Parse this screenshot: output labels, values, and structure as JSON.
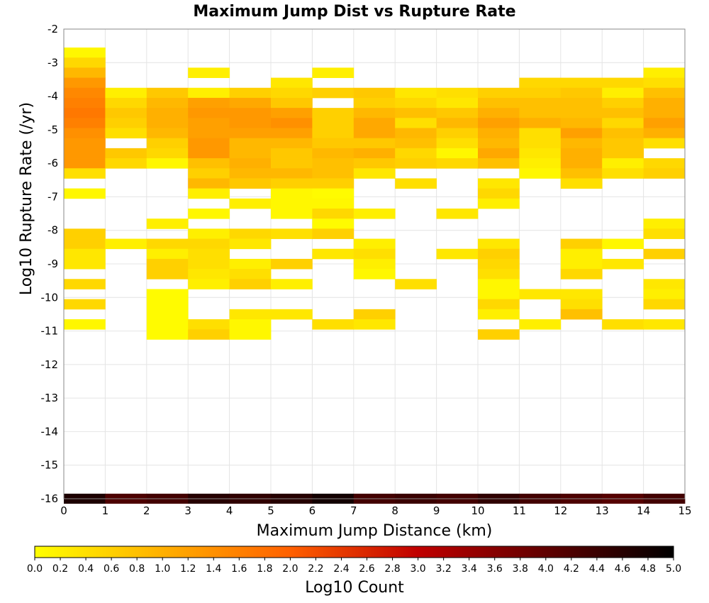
{
  "chart_data": {
    "type": "heatmap",
    "title": "Maximum Jump Dist vs Rupture Rate",
    "xlabel": "Maximum Jump Distance (km)",
    "ylabel": "Log10 Rupture Rate (/yr)",
    "xlim": [
      0,
      15
    ],
    "ylim": [
      -16,
      -2
    ],
    "x_ticks": [
      0,
      1,
      2,
      3,
      4,
      5,
      6,
      7,
      8,
      9,
      10,
      11,
      12,
      13,
      14,
      15
    ],
    "y_ticks": [
      -2,
      -3,
      -4,
      -5,
      -6,
      -7,
      -8,
      -9,
      -10,
      -11,
      -12,
      -13,
      -14,
      -15,
      -16
    ],
    "colorbar": {
      "label": "Log10 Count",
      "range": [
        0.0,
        5.0
      ],
      "ticks": [
        "0.0",
        "0.2",
        "0.4",
        "0.6",
        "0.8",
        "1.0",
        "1.2",
        "1.4",
        "1.6",
        "1.8",
        "2.0",
        "2.2",
        "2.4",
        "2.6",
        "2.8",
        "3.0",
        "3.2",
        "3.4",
        "3.6",
        "3.8",
        "4.0",
        "4.2",
        "4.4",
        "4.6",
        "4.8",
        "5.0"
      ],
      "colors": [
        "#ffff00",
        "#ffb000",
        "#ff6000",
        "#c00000",
        "#600000",
        "#000000"
      ]
    },
    "cell_height": 0.3,
    "cells": [
      [
        0,
        -2.7,
        0.1
      ],
      [
        0,
        -3.0,
        0.5
      ],
      [
        0,
        -3.3,
        0.9
      ],
      [
        0,
        -3.6,
        1.3
      ],
      [
        0,
        -3.9,
        1.5
      ],
      [
        0,
        -4.2,
        1.6
      ],
      [
        0,
        -4.5,
        1.7
      ],
      [
        0,
        -4.8,
        1.6
      ],
      [
        0,
        -5.1,
        1.4
      ],
      [
        0,
        -5.4,
        1.3
      ],
      [
        0,
        -5.7,
        1.3
      ],
      [
        0,
        -6.0,
        1.3
      ],
      [
        0,
        -6.3,
        0.4
      ],
      [
        0,
        -6.9,
        0.1
      ],
      [
        0,
        -8.1,
        0.6
      ],
      [
        0,
        -8.4,
        0.6
      ],
      [
        0,
        -8.7,
        0.3
      ],
      [
        0,
        -9.0,
        0.3
      ],
      [
        0,
        -9.6,
        0.5
      ],
      [
        0,
        -10.2,
        0.5
      ],
      [
        0,
        -10.8,
        0.1
      ],
      [
        1,
        -3.9,
        0.2
      ],
      [
        1,
        -4.2,
        0.5
      ],
      [
        1,
        -4.5,
        0.7
      ],
      [
        1,
        -4.8,
        0.6
      ],
      [
        1,
        -5.1,
        0.4
      ],
      [
        1,
        -5.7,
        0.7
      ],
      [
        1,
        -6.0,
        0.5
      ],
      [
        1,
        -8.4,
        0.2
      ],
      [
        2,
        -3.9,
        0.7
      ],
      [
        2,
        -4.2,
        0.9
      ],
      [
        2,
        -4.5,
        1.0
      ],
      [
        2,
        -4.8,
        1.0
      ],
      [
        2,
        -5.1,
        0.9
      ],
      [
        2,
        -5.4,
        0.6
      ],
      [
        2,
        -5.7,
        0.5
      ],
      [
        2,
        -6.0,
        0.1
      ],
      [
        2,
        -7.8,
        0.2
      ],
      [
        2,
        -8.4,
        0.5
      ],
      [
        2,
        -8.7,
        0.2
      ],
      [
        2,
        -9.0,
        0.6
      ],
      [
        2,
        -9.3,
        0.6
      ],
      [
        2,
        -9.9,
        0.05
      ],
      [
        2,
        -10.2,
        0.05
      ],
      [
        2,
        -10.5,
        0.05
      ],
      [
        2,
        -10.8,
        0.05
      ],
      [
        2,
        -11.1,
        0.05
      ],
      [
        3,
        -3.3,
        0.2
      ],
      [
        3,
        -3.9,
        0.2
      ],
      [
        3,
        -4.2,
        1.2
      ],
      [
        3,
        -4.5,
        1.3
      ],
      [
        3,
        -4.8,
        1.2
      ],
      [
        3,
        -5.1,
        1.2
      ],
      [
        3,
        -5.4,
        1.3
      ],
      [
        3,
        -5.7,
        1.3
      ],
      [
        3,
        -6.0,
        0.8
      ],
      [
        3,
        -6.3,
        0.6
      ],
      [
        3,
        -6.6,
        0.9
      ],
      [
        3,
        -6.9,
        0.2
      ],
      [
        3,
        -7.5,
        0.1
      ],
      [
        3,
        -8.1,
        0.2
      ],
      [
        3,
        -8.4,
        0.5
      ],
      [
        3,
        -8.7,
        0.4
      ],
      [
        3,
        -9.0,
        0.4
      ],
      [
        3,
        -9.3,
        0.3
      ],
      [
        3,
        -9.6,
        0.2
      ],
      [
        3,
        -10.8,
        0.4
      ],
      [
        3,
        -11.1,
        0.6
      ],
      [
        4,
        -3.9,
        0.6
      ],
      [
        4,
        -4.2,
        1.1
      ],
      [
        4,
        -4.5,
        1.3
      ],
      [
        4,
        -4.8,
        1.3
      ],
      [
        4,
        -5.1,
        1.2
      ],
      [
        4,
        -5.4,
        0.9
      ],
      [
        4,
        -5.7,
        0.9
      ],
      [
        4,
        -6.0,
        1.0
      ],
      [
        4,
        -6.3,
        0.9
      ],
      [
        4,
        -6.6,
        0.7
      ],
      [
        4,
        -7.2,
        0.2
      ],
      [
        4,
        -8.1,
        0.5
      ],
      [
        4,
        -8.4,
        0.3
      ],
      [
        4,
        -9.0,
        0.2
      ],
      [
        4,
        -9.3,
        0.4
      ],
      [
        4,
        -9.6,
        0.6
      ],
      [
        4,
        -10.5,
        0.3
      ],
      [
        4,
        -10.8,
        0.1
      ],
      [
        4,
        -11.1,
        0.1
      ],
      [
        5,
        -3.6,
        0.3
      ],
      [
        5,
        -3.9,
        0.5
      ],
      [
        5,
        -4.2,
        0.7
      ],
      [
        5,
        -4.5,
        1.2
      ],
      [
        5,
        -4.8,
        1.4
      ],
      [
        5,
        -5.1,
        1.2
      ],
      [
        5,
        -5.4,
        0.9
      ],
      [
        5,
        -5.7,
        0.7
      ],
      [
        5,
        -6.0,
        0.7
      ],
      [
        5,
        -6.3,
        0.9
      ],
      [
        5,
        -6.6,
        0.6
      ],
      [
        5,
        -6.9,
        0.1
      ],
      [
        5,
        -7.2,
        0.1
      ],
      [
        5,
        -7.5,
        0.1
      ],
      [
        5,
        -8.1,
        0.4
      ],
      [
        5,
        -9.0,
        0.6
      ],
      [
        5,
        -9.6,
        0.2
      ],
      [
        5,
        -10.5,
        0.3
      ],
      [
        6,
        -3.3,
        0.2
      ],
      [
        6,
        -3.9,
        0.6
      ],
      [
        6,
        -4.5,
        0.6
      ],
      [
        6,
        -4.8,
        0.6
      ],
      [
        6,
        -5.1,
        0.6
      ],
      [
        6,
        -5.4,
        0.7
      ],
      [
        6,
        -5.7,
        0.9
      ],
      [
        6,
        -6.0,
        0.8
      ],
      [
        6,
        -6.3,
        0.8
      ],
      [
        6,
        -6.6,
        0.6
      ],
      [
        6,
        -6.9,
        0.05
      ],
      [
        6,
        -7.2,
        0.1
      ],
      [
        6,
        -7.5,
        0.5
      ],
      [
        6,
        -7.8,
        0.05
      ],
      [
        6,
        -8.1,
        0.6
      ],
      [
        6,
        -8.7,
        0.3
      ],
      [
        6,
        -10.8,
        0.4
      ],
      [
        7,
        -3.9,
        0.7
      ],
      [
        7,
        -4.2,
        0.6
      ],
      [
        7,
        -4.5,
        0.9
      ],
      [
        7,
        -4.8,
        1.1
      ],
      [
        7,
        -5.1,
        1.1
      ],
      [
        7,
        -5.4,
        0.7
      ],
      [
        7,
        -5.7,
        1.0
      ],
      [
        7,
        -6.0,
        0.7
      ],
      [
        7,
        -6.3,
        0.3
      ],
      [
        7,
        -7.5,
        0.2
      ],
      [
        7,
        -8.4,
        0.2
      ],
      [
        7,
        -8.7,
        0.4
      ],
      [
        7,
        -9.0,
        0.2
      ],
      [
        7,
        -9.3,
        0.1
      ],
      [
        7,
        -10.5,
        0.6
      ],
      [
        7,
        -10.8,
        0.3
      ],
      [
        8,
        -3.9,
        0.3
      ],
      [
        8,
        -4.2,
        0.5
      ],
      [
        8,
        -4.5,
        0.8
      ],
      [
        8,
        -4.8,
        0.4
      ],
      [
        8,
        -5.1,
        0.9
      ],
      [
        8,
        -5.4,
        0.8
      ],
      [
        8,
        -5.7,
        0.5
      ],
      [
        8,
        -6.0,
        0.6
      ],
      [
        8,
        -6.6,
        0.4
      ],
      [
        8,
        -9.6,
        0.4
      ],
      [
        9,
        -3.9,
        0.4
      ],
      [
        9,
        -4.2,
        0.3
      ],
      [
        9,
        -4.5,
        0.7
      ],
      [
        9,
        -4.8,
        0.9
      ],
      [
        9,
        -5.1,
        0.6
      ],
      [
        9,
        -5.4,
        0.4
      ],
      [
        9,
        -5.7,
        0.1
      ],
      [
        9,
        -6.0,
        0.5
      ],
      [
        9,
        -7.5,
        0.3
      ],
      [
        9,
        -8.7,
        0.3
      ],
      [
        10,
        -3.9,
        0.6
      ],
      [
        10,
        -4.2,
        0.8
      ],
      [
        10,
        -4.5,
        1.0
      ],
      [
        10,
        -4.8,
        1.2
      ],
      [
        10,
        -5.1,
        1.0
      ],
      [
        10,
        -5.4,
        0.9
      ],
      [
        10,
        -5.7,
        1.1
      ],
      [
        10,
        -6.0,
        0.8
      ],
      [
        10,
        -6.6,
        0.3
      ],
      [
        10,
        -6.9,
        0.5
      ],
      [
        10,
        -7.2,
        0.2
      ],
      [
        10,
        -8.4,
        0.3
      ],
      [
        10,
        -8.7,
        0.6
      ],
      [
        10,
        -9.0,
        0.5
      ],
      [
        10,
        -9.3,
        0.4
      ],
      [
        10,
        -9.6,
        0.1
      ],
      [
        10,
        -9.9,
        0.1
      ],
      [
        10,
        -10.2,
        0.5
      ],
      [
        10,
        -10.5,
        0.2
      ],
      [
        10,
        -11.1,
        0.6
      ],
      [
        11,
        -3.6,
        0.5
      ],
      [
        11,
        -3.9,
        0.6
      ],
      [
        11,
        -4.2,
        0.8
      ],
      [
        11,
        -4.5,
        0.8
      ],
      [
        11,
        -4.8,
        1.0
      ],
      [
        11,
        -5.1,
        0.4
      ],
      [
        11,
        -5.4,
        0.4
      ],
      [
        11,
        -5.7,
        0.3
      ],
      [
        11,
        -6.0,
        0.2
      ],
      [
        11,
        -6.3,
        0.1
      ],
      [
        11,
        -9.9,
        0.3
      ],
      [
        11,
        -10.8,
        0.2
      ],
      [
        12,
        -3.6,
        0.5
      ],
      [
        12,
        -3.9,
        0.7
      ],
      [
        12,
        -4.2,
        0.8
      ],
      [
        12,
        -4.5,
        0.8
      ],
      [
        12,
        -4.8,
        0.9
      ],
      [
        12,
        -5.1,
        1.2
      ],
      [
        12,
        -5.4,
        0.9
      ],
      [
        12,
        -5.7,
        1.0
      ],
      [
        12,
        -6.0,
        1.0
      ],
      [
        12,
        -6.3,
        0.8
      ],
      [
        12,
        -6.6,
        0.4
      ],
      [
        12,
        -8.4,
        0.6
      ],
      [
        12,
        -8.7,
        0.2
      ],
      [
        12,
        -9.0,
        0.2
      ],
      [
        12,
        -9.3,
        0.5
      ],
      [
        12,
        -9.9,
        0.3
      ],
      [
        12,
        -10.2,
        0.4
      ],
      [
        12,
        -10.5,
        0.8
      ],
      [
        13,
        -3.6,
        0.5
      ],
      [
        13,
        -3.9,
        0.2
      ],
      [
        13,
        -4.2,
        0.6
      ],
      [
        13,
        -4.5,
        0.8
      ],
      [
        13,
        -4.8,
        0.5
      ],
      [
        13,
        -5.1,
        0.8
      ],
      [
        13,
        -5.4,
        0.7
      ],
      [
        13,
        -5.7,
        0.7
      ],
      [
        13,
        -6.0,
        0.2
      ],
      [
        13,
        -6.3,
        0.4
      ],
      [
        13,
        -8.4,
        0.1
      ],
      [
        13,
        -9.0,
        0.3
      ],
      [
        13,
        -10.8,
        0.4
      ],
      [
        14,
        -3.3,
        0.2
      ],
      [
        14,
        -3.6,
        0.4
      ],
      [
        14,
        -3.9,
        0.8
      ],
      [
        14,
        -4.2,
        1.0
      ],
      [
        14,
        -4.5,
        1.0
      ],
      [
        14,
        -4.8,
        1.2
      ],
      [
        14,
        -5.1,
        1.0
      ],
      [
        14,
        -5.4,
        0.4
      ],
      [
        14,
        -6.0,
        0.5
      ],
      [
        14,
        -6.3,
        0.6
      ],
      [
        14,
        -7.8,
        0.2
      ],
      [
        14,
        -8.1,
        0.4
      ],
      [
        14,
        -8.7,
        0.6
      ],
      [
        14,
        -9.6,
        0.3
      ],
      [
        14,
        -9.9,
        0.2
      ],
      [
        14,
        -10.2,
        0.5
      ],
      [
        14,
        -10.8,
        0.3
      ]
    ],
    "bottom_row": {
      "y": -16.0,
      "values": [
        4.7,
        4.2,
        4.3,
        4.6,
        4.5,
        4.6,
        4.8,
        4.3,
        4.4,
        4.3,
        4.5,
        4.3,
        4.2,
        4.1,
        4.3
      ]
    }
  }
}
